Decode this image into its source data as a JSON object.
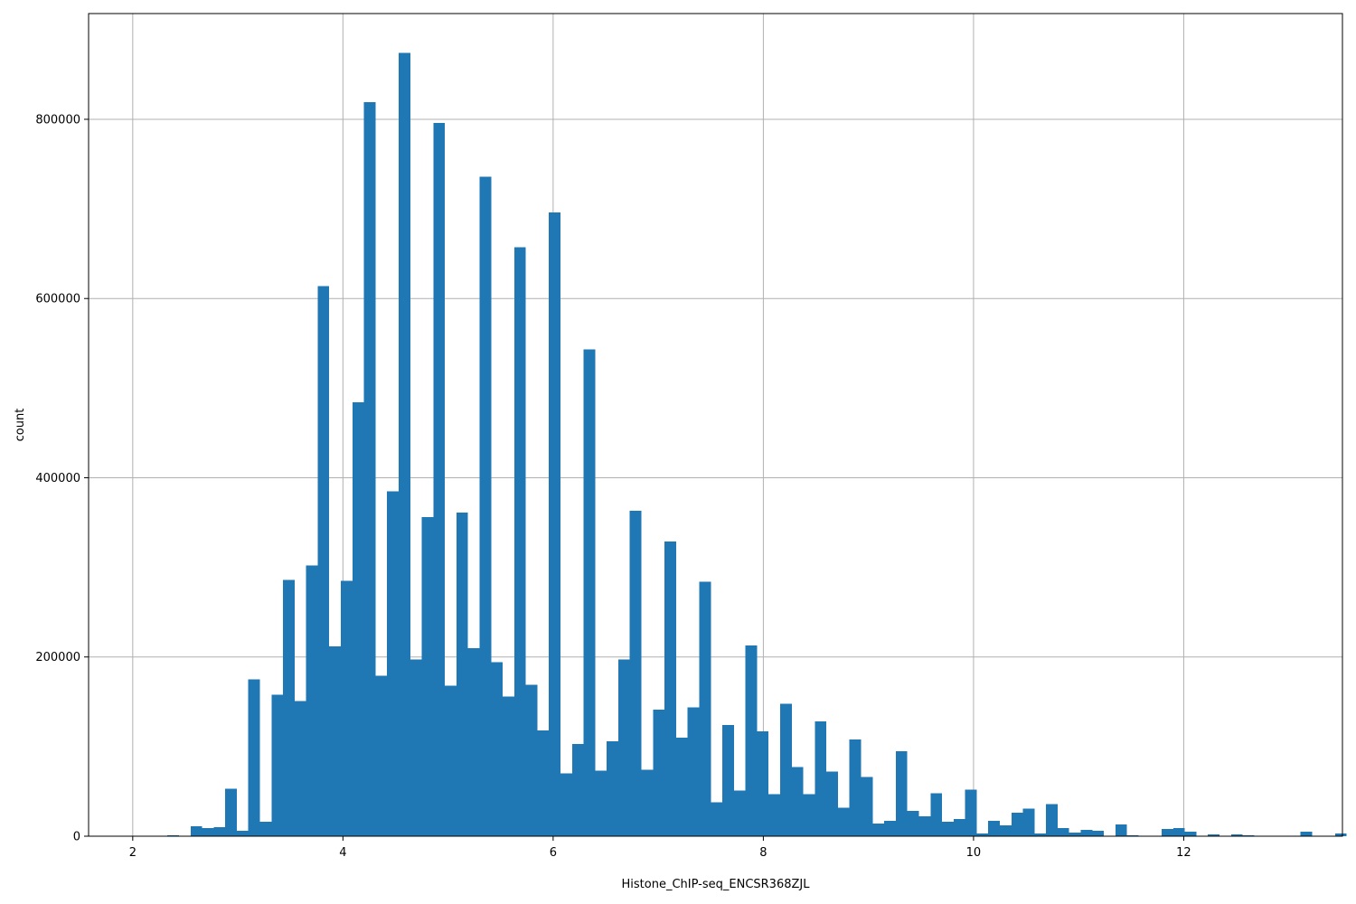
{
  "chart_data": {
    "type": "bar",
    "title": "",
    "xlabel": "Histone_ChIP-seq_ENCSR368ZJL",
    "ylabel": "count",
    "xlim": [
      1.58,
      13.51
    ],
    "ylim": [
      0,
      918000
    ],
    "grid": true,
    "xticks": [
      2,
      4,
      6,
      8,
      10,
      12
    ],
    "yticks": [
      0,
      200000,
      400000,
      600000,
      800000
    ],
    "bar_color": "#1f77b4",
    "bin_start": 2.11,
    "bin_width": 0.11,
    "values": [
      0,
      0,
      1000,
      0,
      11000,
      9000,
      10000,
      53000,
      6000,
      175000,
      16000,
      158000,
      286000,
      151000,
      302000,
      614000,
      212000,
      285000,
      484000,
      819000,
      179000,
      385000,
      874000,
      197000,
      356000,
      796000,
      168000,
      361000,
      210000,
      736000,
      194000,
      156000,
      657000,
      169000,
      118000,
      696000,
      70000,
      103000,
      543000,
      73000,
      106000,
      197000,
      363000,
      74000,
      141000,
      329000,
      110000,
      144000,
      284000,
      38000,
      124000,
      51000,
      213000,
      117000,
      47000,
      148000,
      77000,
      47000,
      128000,
      72000,
      32000,
      108000,
      66000,
      14000,
      17000,
      95000,
      28000,
      22000,
      48000,
      16000,
      19000,
      52000,
      3000,
      17000,
      12000,
      26000,
      31000,
      3000,
      36000,
      9000,
      4000,
      7000,
      6000,
      0,
      13000,
      1000,
      0,
      0,
      8000,
      9000,
      5000,
      0,
      2000,
      0,
      2000,
      1000,
      0,
      0,
      0,
      0,
      5000,
      0,
      0,
      3000
    ]
  }
}
